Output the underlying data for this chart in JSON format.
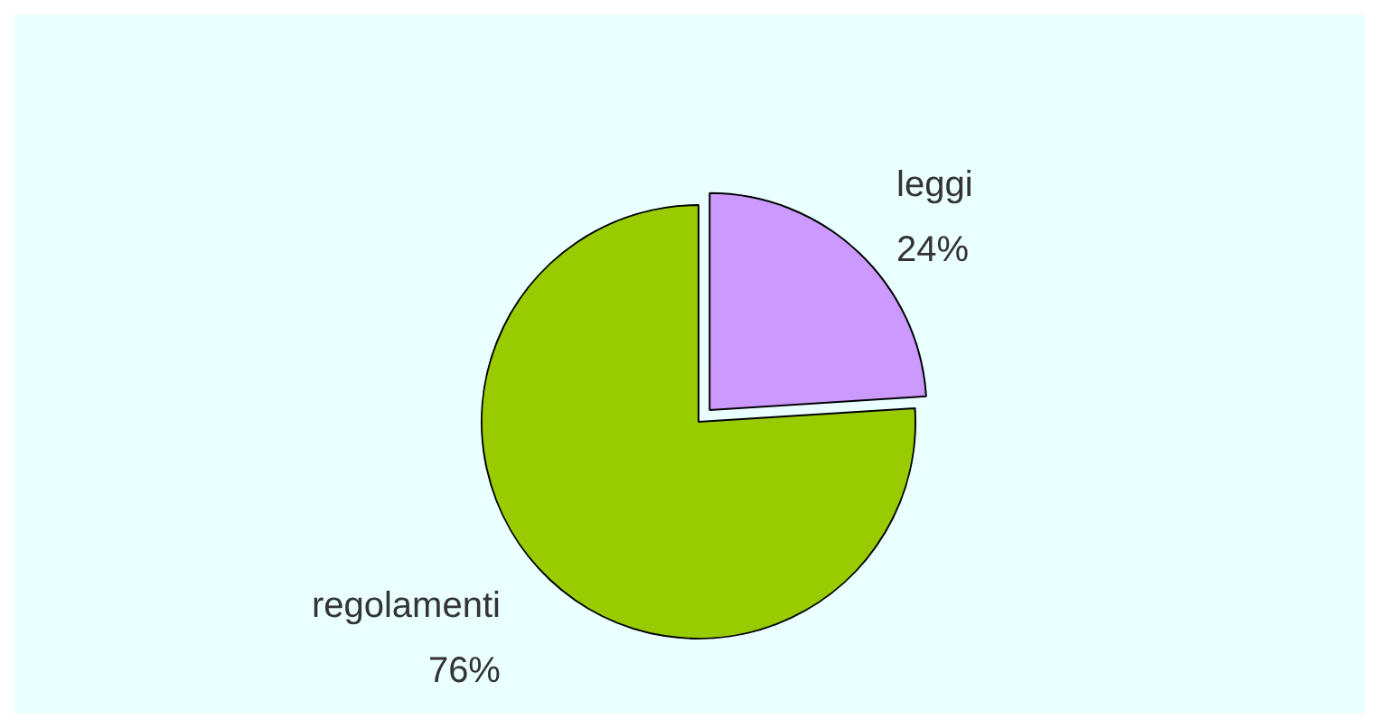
{
  "chart_data": {
    "type": "pie",
    "categories": [
      "leggi",
      "regolamenti"
    ],
    "values": [
      24,
      76
    ],
    "colors": [
      "#cc99ff",
      "#99cc00"
    ],
    "value_labels": [
      "24%",
      "76%"
    ],
    "legend": false
  }
}
